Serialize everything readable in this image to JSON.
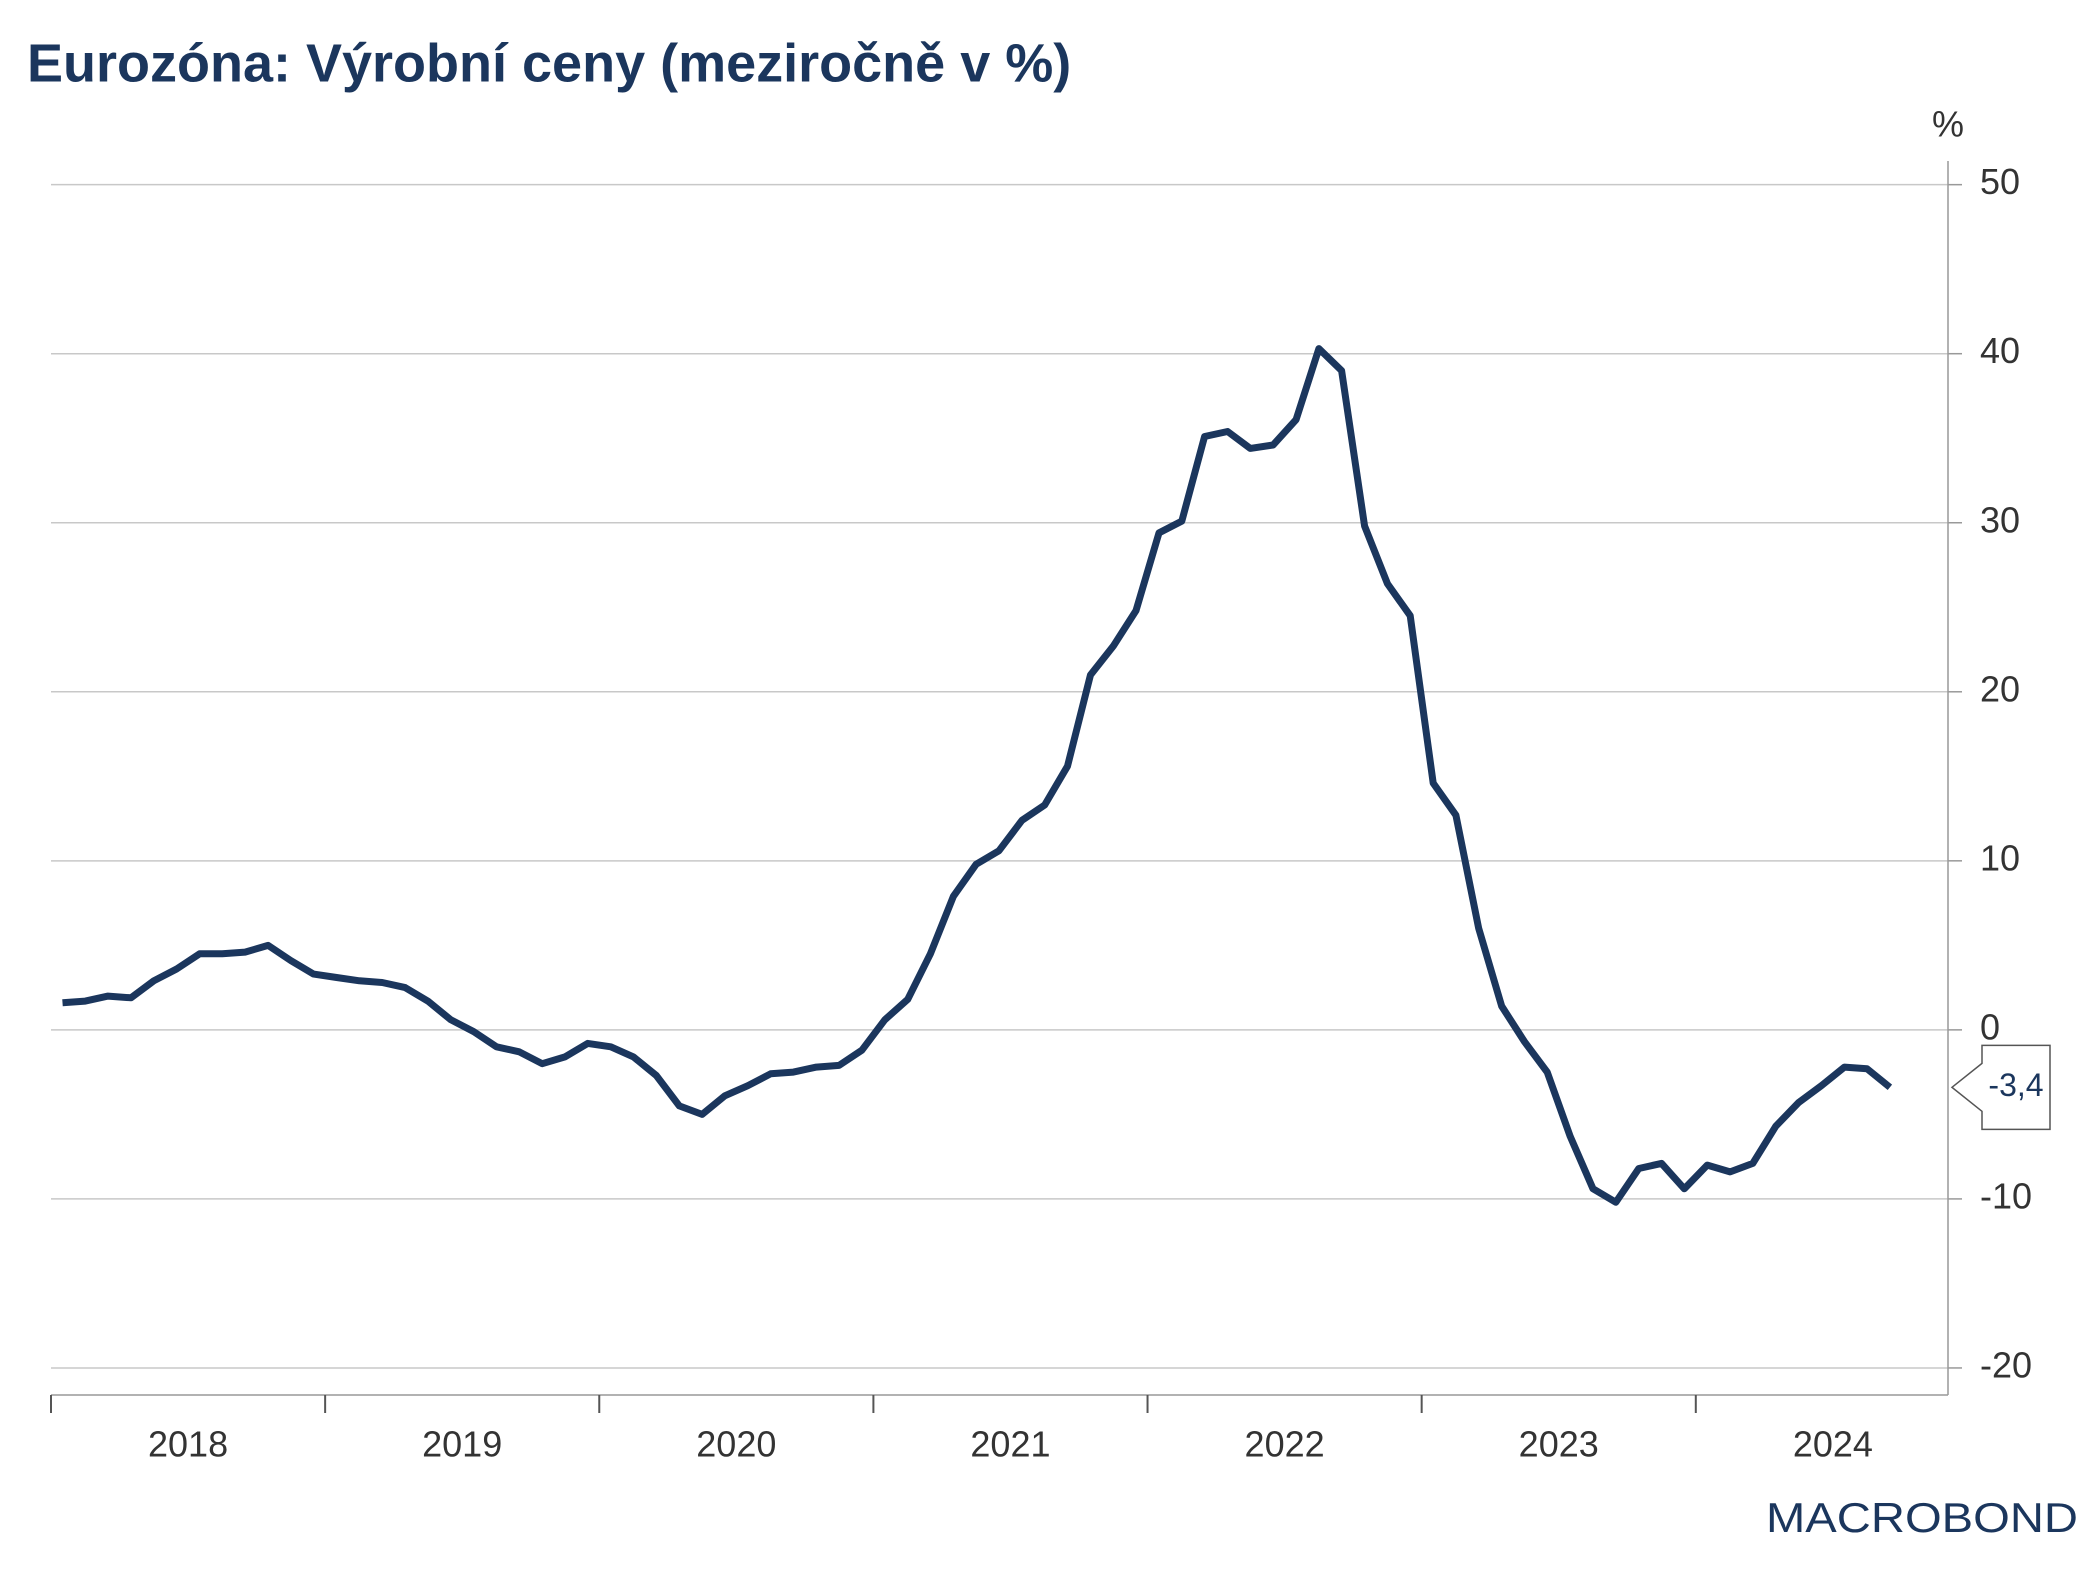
{
  "chart_data": {
    "type": "line",
    "title": "Eurozóna: Výrobní ceny (meziročně v %)",
    "y_unit": "%",
    "source": "MACROBOND",
    "color": "#1b365d",
    "grid": true,
    "x": [
      2018.042,
      2018.125,
      2018.208,
      2018.292,
      2018.375,
      2018.458,
      2018.542,
      2018.625,
      2018.708,
      2018.792,
      2018.875,
      2018.958,
      2019.042,
      2019.125,
      2019.208,
      2019.292,
      2019.375,
      2019.458,
      2019.542,
      2019.625,
      2019.708,
      2019.792,
      2019.875,
      2019.958,
      2020.042,
      2020.125,
      2020.208,
      2020.292,
      2020.375,
      2020.458,
      2020.542,
      2020.625,
      2020.708,
      2020.792,
      2020.875,
      2020.958,
      2021.042,
      2021.125,
      2021.208,
      2021.292,
      2021.375,
      2021.458,
      2021.542,
      2021.625,
      2021.708,
      2021.792,
      2021.875,
      2021.958,
      2022.042,
      2022.125,
      2022.208,
      2022.292,
      2022.375,
      2022.458,
      2022.542,
      2022.625,
      2022.708,
      2022.792,
      2022.875,
      2022.958,
      2023.042,
      2023.125,
      2023.208,
      2023.292,
      2023.375,
      2023.458,
      2023.542,
      2023.625,
      2023.708,
      2023.792,
      2023.875,
      2023.958,
      2024.042,
      2024.125,
      2024.208,
      2024.292,
      2024.375,
      2024.458,
      2024.542,
      2024.625,
      2024.708
    ],
    "series": [
      {
        "color": "#1b365d",
        "values": [
          1.6,
          1.7,
          2.0,
          1.9,
          2.9,
          3.6,
          4.5,
          4.5,
          4.6,
          5.0,
          4.1,
          3.3,
          3.1,
          2.9,
          2.8,
          2.5,
          1.7,
          0.6,
          -0.1,
          -1.0,
          -1.3,
          -2.0,
          -1.6,
          -0.8,
          -1.0,
          -1.6,
          -2.7,
          -4.5,
          -5.0,
          -3.9,
          -3.3,
          -2.6,
          -2.5,
          -2.2,
          -2.1,
          -1.2,
          0.6,
          1.8,
          4.5,
          7.9,
          9.8,
          10.6,
          12.4,
          13.3,
          15.6,
          21.0,
          22.7,
          24.8,
          29.4,
          30.1,
          35.1,
          35.4,
          34.4,
          34.6,
          36.1,
          40.3,
          39.0,
          29.8,
          26.4,
          24.5,
          14.6,
          12.7,
          6.0,
          1.4,
          -0.7,
          -2.5,
          -6.3,
          -9.4,
          -10.2,
          -8.2,
          -7.9,
          -9.4,
          -8.0,
          -8.4,
          -7.9,
          -5.7,
          -4.3,
          -3.3,
          -2.2,
          -2.3,
          -3.4
        ]
      }
    ],
    "last_value": {
      "value": -3.4,
      "label": "-3,4"
    },
    "xlim": [
      2018,
      2024.92
    ],
    "x_tick_marks": [
      2018,
      2019,
      2020,
      2021,
      2022,
      2023,
      2024
    ],
    "xticks": [
      {
        "value": 2018.5,
        "label": "2018"
      },
      {
        "value": 2019.5,
        "label": "2019"
      },
      {
        "value": 2020.5,
        "label": "2020"
      },
      {
        "value": 2021.5,
        "label": "2021"
      },
      {
        "value": 2022.5,
        "label": "2022"
      },
      {
        "value": 2023.5,
        "label": "2023"
      },
      {
        "value": 2024.5,
        "label": "2024"
      }
    ],
    "ylim": [
      -21.6,
      51.4
    ],
    "yticks": [
      -20,
      -10,
      0,
      10,
      20,
      30,
      40,
      50
    ]
  }
}
